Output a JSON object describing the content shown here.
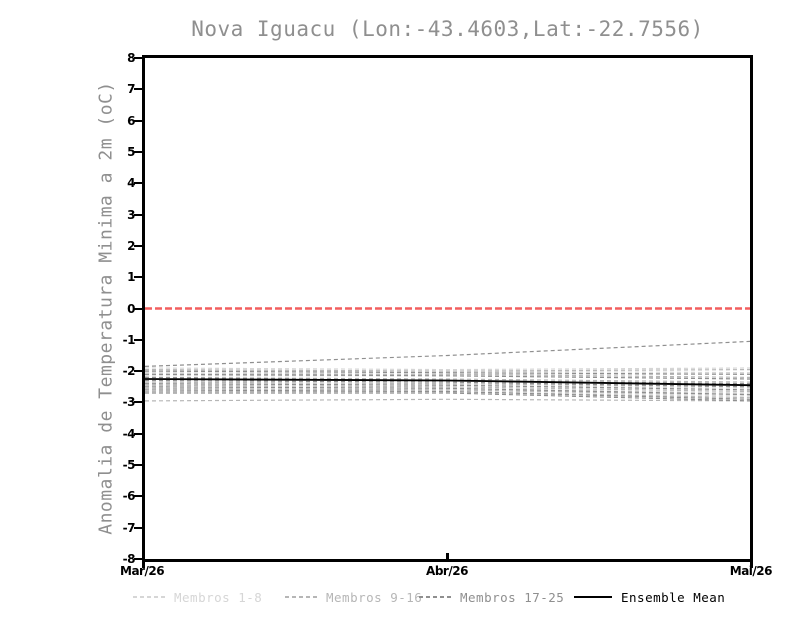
{
  "title": "Nova Iguacu (Lon:-43.4603,Lat:-22.7556)",
  "y_axis": {
    "label": "Anomalia de Temperatura Minima a 2m (oC)",
    "min": -8,
    "max": 8,
    "tick_step": 1,
    "ticks": [
      "8",
      "7",
      "6",
      "5",
      "4",
      "3",
      "2",
      "1",
      "0",
      "-1",
      "-2",
      "-3",
      "-4",
      "-5",
      "-6",
      "-7",
      "-8"
    ]
  },
  "x_axis": {
    "ticks": [
      "Mar/26",
      "Abr/26",
      "Mai/26"
    ]
  },
  "colors": {
    "zero_line": "#f25f5f",
    "mean_line": "#000000",
    "members_1_8": "#d6d6d6",
    "members_9_16": "#b6b6b6",
    "members_17_25": "#8f8f8f",
    "title_text": "#8f8f8f",
    "axis_text": "#000000"
  },
  "legend": [
    {
      "label": "Membros 1-8",
      "style": "dashed",
      "color": "#d6d6d6"
    },
    {
      "label": "Membros 9-16",
      "style": "dashed",
      "color": "#b6b6b6"
    },
    {
      "label": "Membros 17-25",
      "style": "dashed",
      "color": "#8f8f8f"
    },
    {
      "label": "Ensemble Mean",
      "style": "solid",
      "color": "#000000"
    }
  ],
  "chart_data": {
    "type": "line",
    "title": "Nova Iguacu (Lon:-43.4603,Lat:-22.7556)",
    "xlabel": "",
    "ylabel": "Anomalia de Temperatura Minima a 2m (oC)",
    "x": [
      "Mar/26",
      "Abr/26",
      "Mai/26"
    ],
    "ylim": [
      -8,
      8
    ],
    "grid": false,
    "legend_position": "bottom",
    "zero_line": 0,
    "series": [
      {
        "name": "Membro 1",
        "group": "members_1_8",
        "values": [
          -1.9,
          -1.95,
          -1.9
        ]
      },
      {
        "name": "Membro 2",
        "group": "members_1_8",
        "values": [
          -2.0,
          -2.0,
          -2.05
        ]
      },
      {
        "name": "Membro 3",
        "group": "members_1_8",
        "values": [
          -2.05,
          -2.1,
          -2.1
        ]
      },
      {
        "name": "Membro 4",
        "group": "members_1_8",
        "values": [
          -2.15,
          -2.15,
          -2.25
        ]
      },
      {
        "name": "Membro 5",
        "group": "members_1_8",
        "values": [
          -2.25,
          -2.3,
          -2.4
        ]
      },
      {
        "name": "Membro 6",
        "group": "members_1_8",
        "values": [
          -2.4,
          -2.45,
          -2.55
        ]
      },
      {
        "name": "Membro 7",
        "group": "members_1_8",
        "values": [
          -2.5,
          -2.55,
          -2.7
        ]
      },
      {
        "name": "Membro 8",
        "group": "members_1_8",
        "values": [
          -2.6,
          -2.6,
          -2.8
        ]
      },
      {
        "name": "Membro 9",
        "group": "members_9_16",
        "values": [
          -1.95,
          -2.0,
          -1.95
        ]
      },
      {
        "name": "Membro 10",
        "group": "members_9_16",
        "values": [
          -2.1,
          -2.1,
          -2.2
        ]
      },
      {
        "name": "Membro 11",
        "group": "members_9_16",
        "values": [
          -2.2,
          -2.25,
          -2.35
        ]
      },
      {
        "name": "Membro 12",
        "group": "members_9_16",
        "values": [
          -2.35,
          -2.4,
          -2.5
        ]
      },
      {
        "name": "Membro 13",
        "group": "members_9_16",
        "values": [
          -2.45,
          -2.5,
          -2.65
        ]
      },
      {
        "name": "Membro 14",
        "group": "members_9_16",
        "values": [
          -2.55,
          -2.6,
          -2.75
        ]
      },
      {
        "name": "Membro 15",
        "group": "members_9_16",
        "values": [
          -2.65,
          -2.65,
          -2.85
        ]
      },
      {
        "name": "Membro 16",
        "group": "members_9_16",
        "values": [
          -2.95,
          -2.9,
          -2.95
        ]
      },
      {
        "name": "Membro 17",
        "group": "members_17_25",
        "values": [
          -1.85,
          -1.5,
          -1.05
        ]
      },
      {
        "name": "Membro 18",
        "group": "members_17_25",
        "values": [
          -2.0,
          -2.05,
          -2.1
        ]
      },
      {
        "name": "Membro 19",
        "group": "members_17_25",
        "values": [
          -2.1,
          -2.15,
          -2.25
        ]
      },
      {
        "name": "Membro 20",
        "group": "members_17_25",
        "values": [
          -2.2,
          -2.3,
          -2.4
        ]
      },
      {
        "name": "Membro 21",
        "group": "members_17_25",
        "values": [
          -2.3,
          -2.35,
          -2.5
        ]
      },
      {
        "name": "Membro 22",
        "group": "members_17_25",
        "values": [
          -2.4,
          -2.45,
          -2.6
        ]
      },
      {
        "name": "Membro 23",
        "group": "members_17_25",
        "values": [
          -2.5,
          -2.55,
          -2.75
        ]
      },
      {
        "name": "Membro 24",
        "group": "members_17_25",
        "values": [
          -2.6,
          -2.65,
          -2.9
        ]
      },
      {
        "name": "Membro 25",
        "group": "members_17_25",
        "values": [
          -2.7,
          -2.7,
          -2.95
        ]
      },
      {
        "name": "Ensemble Mean",
        "group": "mean",
        "values": [
          -2.25,
          -2.3,
          -2.45
        ]
      }
    ]
  }
}
